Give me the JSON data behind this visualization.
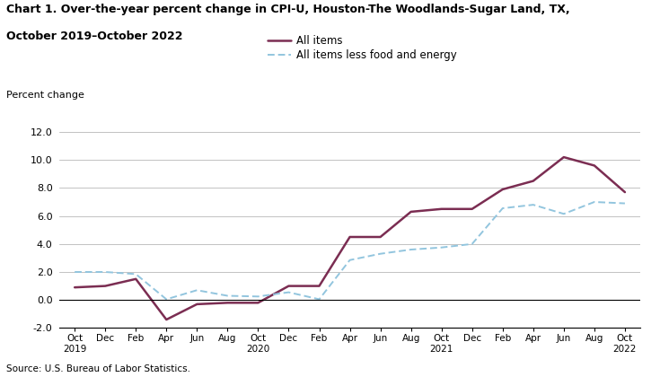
{
  "title_line1": "Chart 1. Over-the-year percent change in CPI-U, Houston-The Woodlands-Sugar Land, TX,",
  "title_line2": "October 2019–October 2022",
  "ylabel": "Percent change",
  "source": "Source: U.S. Bureau of Labor Statistics.",
  "ylim": [
    -2.0,
    12.0
  ],
  "yticks": [
    -2.0,
    0.0,
    2.0,
    4.0,
    6.0,
    8.0,
    10.0,
    12.0
  ],
  "all_items_label": "All items",
  "core_label": "All items less food and energy",
  "all_items_color": "#7B2D52",
  "core_color": "#92C5DE",
  "months": [
    "Oct\n2019",
    "Dec",
    "Feb",
    "Apr",
    "Jun",
    "Aug",
    "Oct\n2020",
    "Dec",
    "Feb",
    "Apr",
    "Jun",
    "Aug",
    "Oct\n2021",
    "Dec",
    "Feb",
    "Apr",
    "Jun",
    "Aug",
    "Oct\n2022"
  ],
  "all_items_values": [
    0.9,
    1.0,
    1.5,
    -1.4,
    -0.3,
    -0.2,
    -0.2,
    1.0,
    1.0,
    4.5,
    4.5,
    6.3,
    6.5,
    6.5,
    7.9,
    8.5,
    10.2,
    9.6,
    7.7
  ],
  "core_values": [
    2.0,
    2.0,
    1.85,
    0.05,
    0.7,
    0.3,
    0.25,
    0.55,
    0.05,
    2.85,
    3.3,
    3.6,
    3.75,
    4.0,
    6.55,
    6.8,
    6.15,
    7.0,
    6.9
  ],
  "background_color": "#FFFFFF",
  "grid_color": "#AAAAAA"
}
